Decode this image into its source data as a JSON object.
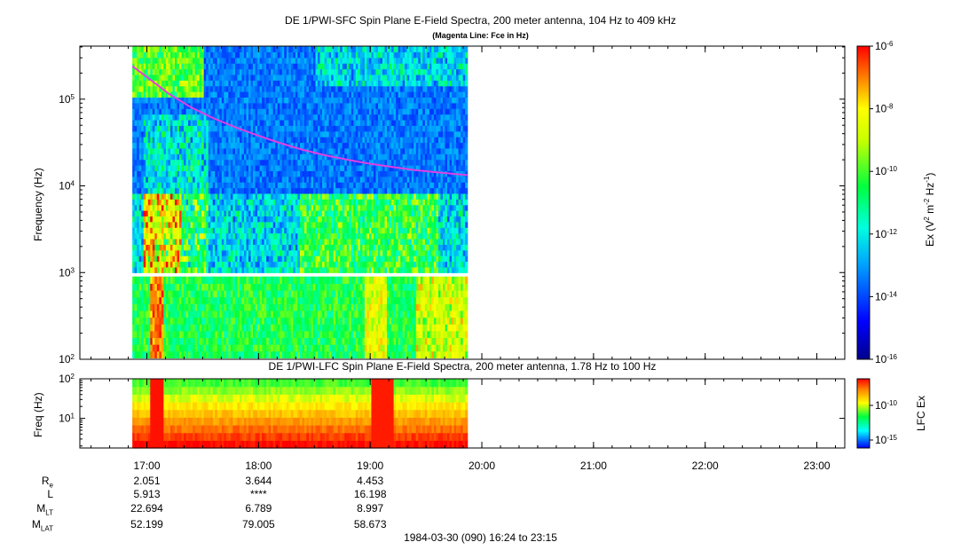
{
  "chart_data": [
    {
      "type": "heatmap",
      "title": "DE 1/PWI-SFC  Spin Plane E-Field Spectra, 200 meter antenna, 104 Hz to 409 kHz",
      "subtitle": "(Magenta Line: Fce in Hz)",
      "ylabel": "Frequency (Hz)",
      "yscale": "log",
      "ylim": [
        100,
        409000
      ],
      "yticks": [
        {
          "v": 100,
          "label": "10",
          "exp": "2"
        },
        {
          "v": 1000,
          "label": "10",
          "exp": "3"
        },
        {
          "v": 10000,
          "label": "10",
          "exp": "4"
        },
        {
          "v": 100000,
          "label": "10",
          "exp": "5"
        }
      ],
      "colorbar": {
        "label_base": "Ex (V",
        "label_sup1": "2",
        "label_mid": " m",
        "label_sup2": "-2",
        "label_mid2": " Hz",
        "label_sup3": "-1",
        "label_end": ")",
        "scale": "log",
        "range": [
          1e-16,
          1e-06
        ],
        "ticks": [
          {
            "label": "10",
            "exp": "-6"
          },
          {
            "label": "10",
            "exp": "-8"
          },
          {
            "label": "10",
            "exp": "-10"
          },
          {
            "label": "10",
            "exp": "-12"
          },
          {
            "label": "10",
            "exp": "-14"
          },
          {
            "label": "10",
            "exp": "-16"
          }
        ]
      },
      "fce_line": {
        "color": "#e040e0",
        "x_hours": [
          16.87,
          17.0,
          17.2,
          17.4,
          17.6,
          17.8,
          18.0,
          18.2,
          18.4,
          18.6,
          18.8,
          19.0,
          19.2,
          19.4,
          19.6,
          19.87
        ],
        "y_hz": [
          240000,
          180000,
          115000,
          80000,
          60000,
          47000,
          38000,
          31000,
          26000,
          22500,
          20000,
          18000,
          16500,
          15200,
          14300,
          13300
        ]
      }
    },
    {
      "type": "heatmap",
      "title": "DE 1/PWI-LFC  Spin Plane E-Field Spectra, 200 meter antenna, 1.78 Hz to 100 Hz",
      "ylabel": "Freq (Hz)",
      "yscale": "log",
      "ylim": [
        1.78,
        100
      ],
      "yticks": [
        {
          "v": 10,
          "label": "10",
          "exp": "1"
        },
        {
          "v": 100,
          "label": "10",
          "exp": "2"
        }
      ],
      "colorbar": {
        "label": "LFC Ex",
        "scale": "log",
        "ticks": [
          {
            "label": "10",
            "exp": "-10"
          },
          {
            "label": "10",
            "exp": "-15"
          }
        ]
      }
    }
  ],
  "time_axis": {
    "start": "16:24",
    "end": "23:15",
    "tick_labels": [
      "17:00",
      "18:00",
      "19:00",
      "20:00",
      "21:00",
      "22:00",
      "23:00"
    ],
    "tick_hours": [
      17,
      18,
      19,
      20,
      21,
      22,
      23
    ],
    "data_end": "19:52"
  },
  "ephemeris": {
    "rows": [
      {
        "label": "R",
        "sub": "e",
        "values": [
          "2.051",
          "3.644",
          "4.453"
        ]
      },
      {
        "label": "L",
        "sub": "",
        "values": [
          "5.913",
          "****",
          "16.198"
        ]
      },
      {
        "label": "M",
        "sub": "LT",
        "values": [
          "22.694",
          "6.789",
          "8.997"
        ]
      },
      {
        "label": "M",
        "sub": "LAT",
        "values": [
          "52.199",
          "79.005",
          "58.673"
        ]
      }
    ]
  },
  "footer": "1984-03-30 (090) 16:24 to 23:15"
}
